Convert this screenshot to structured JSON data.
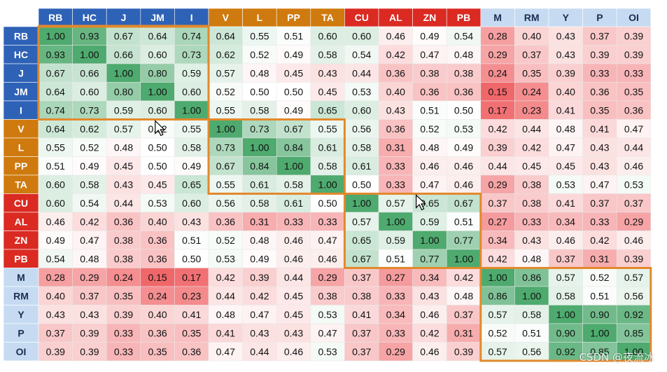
{
  "chart_data": {
    "type": "heatmap",
    "labels": [
      "RB",
      "HC",
      "J",
      "JM",
      "I",
      "V",
      "L",
      "PP",
      "TA",
      "CU",
      "AL",
      "ZN",
      "PB",
      "M",
      "RM",
      "Y",
      "P",
      "OI"
    ],
    "groups": [
      {
        "members": [
          "RB",
          "HC",
          "J",
          "JM",
          "I"
        ],
        "color": "#2e62b6",
        "text_color": "#ffffff"
      },
      {
        "members": [
          "V",
          "L",
          "PP",
          "TA"
        ],
        "color": "#cf7a0e",
        "text_color": "#ffffff"
      },
      {
        "members": [
          "CU",
          "AL",
          "ZN",
          "PB"
        ],
        "color": "#da2a22",
        "text_color": "#ffffff"
      },
      {
        "members": [
          "M",
          "RM",
          "Y",
          "P",
          "OI"
        ],
        "color": "#c6dbf2",
        "text_color": "#1b2e52"
      }
    ],
    "matrix": [
      [
        1.0,
        0.93,
        0.67,
        0.64,
        0.74,
        0.64,
        0.55,
        0.51,
        0.6,
        0.6,
        0.46,
        0.49,
        0.54,
        0.28,
        0.4,
        0.43,
        0.37,
        0.39
      ],
      [
        0.93,
        1.0,
        0.66,
        0.6,
        0.73,
        0.62,
        0.52,
        0.49,
        0.58,
        0.54,
        0.42,
        0.47,
        0.48,
        0.29,
        0.37,
        0.43,
        0.39,
        0.39
      ],
      [
        0.67,
        0.66,
        1.0,
        0.8,
        0.59,
        0.57,
        0.48,
        0.45,
        0.43,
        0.44,
        0.36,
        0.38,
        0.38,
        0.24,
        0.35,
        0.39,
        0.33,
        0.33
      ],
      [
        0.64,
        0.6,
        0.8,
        1.0,
        0.6,
        0.52,
        0.5,
        0.5,
        0.45,
        0.53,
        0.4,
        0.36,
        0.36,
        0.15,
        0.24,
        0.4,
        0.36,
        0.35
      ],
      [
        0.74,
        0.73,
        0.59,
        0.6,
        1.0,
        0.55,
        0.58,
        0.49,
        0.65,
        0.6,
        0.43,
        0.51,
        0.5,
        0.17,
        0.23,
        0.41,
        0.35,
        0.36
      ],
      [
        0.64,
        0.62,
        0.57,
        0.52,
        0.55,
        1.0,
        0.73,
        0.67,
        0.55,
        0.56,
        0.36,
        0.52,
        0.53,
        0.42,
        0.44,
        0.48,
        0.41,
        0.47
      ],
      [
        0.55,
        0.52,
        0.48,
        0.5,
        0.58,
        0.73,
        1.0,
        0.84,
        0.61,
        0.58,
        0.31,
        0.48,
        0.49,
        0.39,
        0.42,
        0.47,
        0.43,
        0.44
      ],
      [
        0.51,
        0.49,
        0.45,
        0.5,
        0.49,
        0.67,
        0.84,
        1.0,
        0.58,
        0.61,
        0.33,
        0.46,
        0.46,
        0.44,
        0.45,
        0.45,
        0.43,
        0.46
      ],
      [
        0.6,
        0.58,
        0.43,
        0.45,
        0.65,
        0.55,
        0.61,
        0.58,
        1.0,
        0.5,
        0.33,
        0.47,
        0.46,
        0.29,
        0.38,
        0.53,
        0.47,
        0.53
      ],
      [
        0.6,
        0.54,
        0.44,
        0.53,
        0.6,
        0.56,
        0.58,
        0.61,
        0.5,
        1.0,
        0.57,
        0.65,
        0.67,
        0.37,
        0.38,
        0.41,
        0.37,
        0.37
      ],
      [
        0.46,
        0.42,
        0.36,
        0.4,
        0.43,
        0.36,
        0.31,
        0.33,
        0.33,
        0.57,
        1.0,
        0.59,
        0.51,
        0.27,
        0.33,
        0.34,
        0.33,
        0.29
      ],
      [
        0.49,
        0.47,
        0.38,
        0.36,
        0.51,
        0.52,
        0.48,
        0.46,
        0.47,
        0.65,
        0.59,
        1.0,
        0.77,
        0.34,
        0.43,
        0.46,
        0.42,
        0.46
      ],
      [
        0.54,
        0.48,
        0.38,
        0.36,
        0.5,
        0.53,
        0.49,
        0.46,
        0.46,
        0.67,
        0.51,
        0.77,
        1.0,
        0.42,
        0.48,
        0.37,
        0.31,
        0.39
      ],
      [
        0.28,
        0.29,
        0.24,
        0.15,
        0.17,
        0.42,
        0.39,
        0.44,
        0.29,
        0.37,
        0.27,
        0.34,
        0.42,
        1.0,
        0.86,
        0.57,
        0.52,
        0.57
      ],
      [
        0.4,
        0.37,
        0.35,
        0.24,
        0.23,
        0.44,
        0.42,
        0.45,
        0.38,
        0.38,
        0.33,
        0.43,
        0.48,
        0.86,
        1.0,
        0.58,
        0.51,
        0.56
      ],
      [
        0.43,
        0.43,
        0.39,
        0.4,
        0.41,
        0.48,
        0.47,
        0.45,
        0.53,
        0.41,
        0.34,
        0.46,
        0.37,
        0.57,
        0.58,
        1.0,
        0.9,
        0.92
      ],
      [
        0.37,
        0.39,
        0.33,
        0.36,
        0.35,
        0.41,
        0.43,
        0.43,
        0.47,
        0.37,
        0.33,
        0.42,
        0.31,
        0.52,
        0.51,
        0.9,
        1.0,
        0.85
      ],
      [
        0.39,
        0.39,
        0.33,
        0.35,
        0.36,
        0.47,
        0.44,
        0.46,
        0.53,
        0.37,
        0.29,
        0.46,
        0.39,
        0.57,
        0.56,
        0.92,
        0.85,
        1.0
      ]
    ],
    "color_scale": {
      "low": "#f0676a",
      "mid": "#ffffff",
      "high": "#4eaa6e",
      "low_value": 0.15,
      "mid_value": 0.5,
      "high_value": 1.0
    },
    "highlight_border_color": "#e2892d",
    "legend": "none",
    "grid": true
  },
  "watermark": "CSDN @夜流冰"
}
